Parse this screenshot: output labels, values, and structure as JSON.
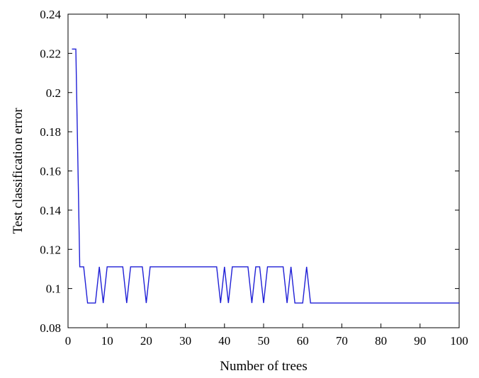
{
  "chart_data": {
    "type": "line",
    "title": "",
    "xlabel": "Number of trees",
    "ylabel": "Test classification error",
    "xlim": [
      0,
      100
    ],
    "ylim": [
      0.08,
      0.24
    ],
    "x_ticks": [
      0,
      10,
      20,
      30,
      40,
      50,
      60,
      70,
      80,
      90,
      100
    ],
    "x_tick_labels": [
      "0",
      "10",
      "20",
      "30",
      "40",
      "50",
      "60",
      "70",
      "80",
      "90",
      "100"
    ],
    "y_ticks": [
      0.08,
      0.1,
      0.12,
      0.14,
      0.16,
      0.18,
      0.2,
      0.22,
      0.24
    ],
    "y_tick_labels": [
      "0.08",
      "0.1",
      "0.12",
      "0.14",
      "0.16",
      "0.18",
      "0.2",
      "0.22",
      "0.24"
    ],
    "grid": false,
    "legend": "none",
    "series": [
      {
        "color": "#1f1fd6",
        "x": [
          1,
          2,
          3,
          4,
          5,
          6,
          7,
          8,
          9,
          10,
          11,
          12,
          13,
          14,
          15,
          16,
          17,
          18,
          19,
          20,
          21,
          22,
          23,
          24,
          25,
          26,
          27,
          28,
          29,
          30,
          31,
          32,
          33,
          34,
          35,
          36,
          37,
          38,
          39,
          40,
          41,
          42,
          43,
          44,
          45,
          46,
          47,
          48,
          49,
          50,
          51,
          52,
          53,
          54,
          55,
          56,
          57,
          58,
          59,
          60,
          61,
          62,
          63,
          64,
          65,
          66,
          67,
          68,
          69,
          70,
          71,
          72,
          73,
          74,
          75,
          76,
          77,
          78,
          79,
          80,
          81,
          82,
          83,
          84,
          85,
          86,
          87,
          88,
          89,
          90,
          91,
          92,
          93,
          94,
          95,
          96,
          97,
          98,
          99,
          100
        ],
        "y": [
          0.2222,
          0.2222,
          0.1111,
          0.1111,
          0.0926,
          0.0926,
          0.0926,
          0.1111,
          0.0926,
          0.1111,
          0.1111,
          0.1111,
          0.1111,
          0.1111,
          0.0926,
          0.1111,
          0.1111,
          0.1111,
          0.1111,
          0.0926,
          0.1111,
          0.1111,
          0.1111,
          0.1111,
          0.1111,
          0.1111,
          0.1111,
          0.1111,
          0.1111,
          0.1111,
          0.1111,
          0.1111,
          0.1111,
          0.1111,
          0.1111,
          0.1111,
          0.1111,
          0.1111,
          0.0926,
          0.1111,
          0.0926,
          0.1111,
          0.1111,
          0.1111,
          0.1111,
          0.1111,
          0.0926,
          0.1111,
          0.1111,
          0.0926,
          0.1111,
          0.1111,
          0.1111,
          0.1111,
          0.1111,
          0.0926,
          0.1111,
          0.0926,
          0.0926,
          0.0926,
          0.1111,
          0.0926,
          0.0926,
          0.0926,
          0.0926,
          0.0926,
          0.0926,
          0.0926,
          0.0926,
          0.0926,
          0.0926,
          0.0926,
          0.0926,
          0.0926,
          0.0926,
          0.0926,
          0.0926,
          0.0926,
          0.0926,
          0.0926,
          0.0926,
          0.0926,
          0.0926,
          0.0926,
          0.0926,
          0.0926,
          0.0926,
          0.0926,
          0.0926,
          0.0926,
          0.0926,
          0.0926,
          0.0926,
          0.0926,
          0.0926,
          0.0926,
          0.0926,
          0.0926,
          0.0926,
          0.0926
        ]
      }
    ]
  }
}
